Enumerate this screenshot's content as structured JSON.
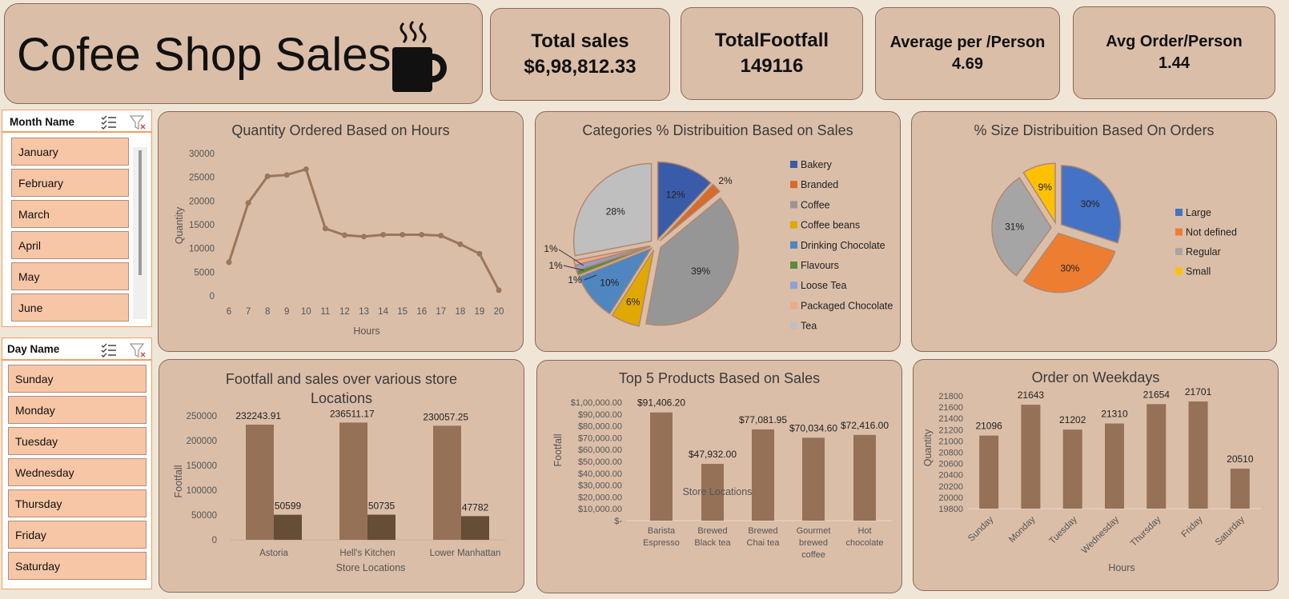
{
  "header": {
    "title": "Cofee Shop Sales"
  },
  "kpis": [
    {
      "label": "Total sales",
      "value": "$6,98,812.33"
    },
    {
      "label": "TotalFootfall",
      "value": "149116"
    },
    {
      "label": "Average per /Person",
      "value": "4.69"
    },
    {
      "label": "Avg Order/Person",
      "value": "1.44"
    }
  ],
  "slicers": {
    "month": {
      "title": "Month Name",
      "items": [
        "January",
        "February",
        "March",
        "April",
        "May",
        "June"
      ]
    },
    "day": {
      "title": "Day Name",
      "items": [
        "Sunday",
        "Monday",
        "Tuesday",
        "Wednesday",
        "Thursday",
        "Friday",
        "Saturday"
      ]
    }
  },
  "colors": {
    "brown": "#957157",
    "darkbrown": "#654d36",
    "line": "#9a765b",
    "panel": "#dbbea8"
  },
  "chart_data": [
    {
      "id": "hours",
      "type": "line",
      "title": "Quantity Ordered Based on Hours",
      "xlabel": "Hours",
      "ylabel": "Quantity",
      "x": [
        6,
        7,
        8,
        9,
        10,
        11,
        12,
        13,
        14,
        15,
        16,
        17,
        18,
        19,
        20
      ],
      "values": [
        7100,
        19600,
        25200,
        25500,
        26700,
        14200,
        12800,
        12500,
        12900,
        12900,
        12900,
        12700,
        10900,
        8900,
        1200
      ],
      "ylim": [
        0,
        30000
      ],
      "yticks": [
        0,
        5000,
        10000,
        15000,
        20000,
        25000,
        30000
      ]
    },
    {
      "id": "categories",
      "type": "pie",
      "title": "Categories % Distribuition Based on Sales",
      "labels": [
        "Bakery",
        "Branded",
        "Coffee",
        "Coffee beans",
        "Drinking Chocolate",
        "Flavours",
        "Loose Tea",
        "Packaged Chocolate",
        "Tea"
      ],
      "values": [
        12,
        2,
        39,
        6,
        10,
        1,
        1,
        1,
        28
      ],
      "value_labels": [
        "12%",
        "2%",
        "39%",
        "6%",
        "10%",
        "1%",
        "1%",
        "1%",
        "28%"
      ],
      "colors": [
        "#3a5ca8",
        "#d96a2a",
        "#969696",
        "#e0a800",
        "#4f86c0",
        "#5e8a3a",
        "#8fa0d8",
        "#f0a888",
        "#bfbfbf"
      ],
      "legend": "right"
    },
    {
      "id": "sizes",
      "type": "pie",
      "title": "% Size Distribuition Based On Orders",
      "labels": [
        "Large",
        "Not defined",
        "Regular",
        "Small"
      ],
      "values": [
        30,
        30,
        31,
        9
      ],
      "value_labels": [
        "30%",
        "30%",
        "31%",
        "9%"
      ],
      "colors": [
        "#4472c4",
        "#ed7d31",
        "#a5a5a5",
        "#ffc000"
      ],
      "legend": "right"
    },
    {
      "id": "stores",
      "type": "bar",
      "title": "Footfall and sales over various store Locations",
      "xlabel": "Store Locations",
      "ylabel": "Footfall",
      "categories": [
        "Astoria",
        "Hell's Kitchen",
        "Lower Manhattan"
      ],
      "series": [
        {
          "values": [
            232243.91,
            236511.17,
            230057.25
          ],
          "labels": [
            "232243.91",
            "236511.17",
            "230057.25"
          ]
        },
        {
          "values": [
            50599,
            50735,
            47782
          ],
          "labels": [
            "50599",
            "50735",
            "47782"
          ]
        }
      ],
      "ylim": [
        0,
        250000
      ],
      "yticks": [
        0,
        50000,
        100000,
        150000,
        200000,
        250000
      ]
    },
    {
      "id": "products",
      "type": "bar",
      "title": "Top 5 Products Based on Sales",
      "xlabel": "Store Locations",
      "ylabel": "Footfall",
      "categories": [
        "Barista Espresso",
        "Brewed Black tea",
        "Brewed Chai tea",
        "Gourmet brewed coffee",
        "Hot chocolate"
      ],
      "values": [
        91406.2,
        47932.0,
        77081.95,
        70034.6,
        72416.0
      ],
      "value_labels": [
        "$91,406.20",
        "$47,932.00",
        "$77,081.95",
        "$70,034.60",
        "$72,416.00"
      ],
      "ylim": [
        0,
        100000
      ],
      "ytick_labels": [
        "$-",
        "$10,000.00",
        "$20,000.00",
        "$30,000.00",
        "$40,000.00",
        "$50,000.00",
        "$60,000.00",
        "$70,000.00",
        "$80,000.00",
        "$90,000.00",
        "$1,00,000.00"
      ]
    },
    {
      "id": "weekdays",
      "type": "bar",
      "title": "Order on Weekdays",
      "xlabel": "Hours",
      "ylabel": "Quantity",
      "categories": [
        "Sunday",
        "Monday",
        "Tuesday",
        "Wednesday",
        "Thursday",
        "Friday",
        "Saturday"
      ],
      "values": [
        21096,
        21643,
        21202,
        21310,
        21654,
        21701,
        20510
      ],
      "value_labels": [
        "21096",
        "21643",
        "21202",
        "21310",
        "21654",
        "21701",
        "20510"
      ],
      "ylim": [
        19800,
        21800
      ],
      "yticks": [
        19800,
        20000,
        20200,
        20400,
        20600,
        20800,
        21000,
        21200,
        21400,
        21600,
        21800
      ]
    }
  ]
}
